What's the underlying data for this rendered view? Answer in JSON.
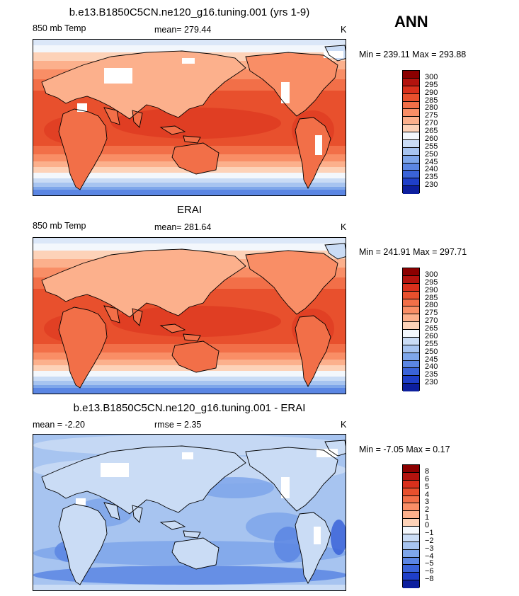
{
  "season": "ANN",
  "panels": [
    {
      "title": "b.e13.B1850C5CN.ne120_g16.tuning.001 (yrs 1-9)",
      "left_label": "850 mb Temp",
      "center_label": "mean= 279.44",
      "units": "K",
      "minmax": "Min = 239.11 Max = 293.88",
      "colorbar_labels": [
        "300",
        "295",
        "290",
        "285",
        "280",
        "275",
        "270",
        "265",
        "260",
        "255",
        "250",
        "245",
        "240",
        "235",
        "230"
      ],
      "colorbar_colors": [
        "#8b0000",
        "#b3130e",
        "#d9301c",
        "#e8502d",
        "#f26f48",
        "#f98e66",
        "#fcb08c",
        "#fdd2b8",
        "#f3f7fc",
        "#cadcf5",
        "#a7c4f0",
        "#7ea6ea",
        "#5b86e3",
        "#3a63d8",
        "#1f3fc8",
        "#0d1f9e"
      ],
      "map_style": "model"
    },
    {
      "title": "ERAI",
      "left_label": "850 mb Temp",
      "center_label": "mean= 281.64",
      "units": "K",
      "minmax": "Min = 241.91 Max = 297.71",
      "colorbar_labels": [
        "300",
        "295",
        "290",
        "285",
        "280",
        "275",
        "270",
        "265",
        "260",
        "255",
        "250",
        "245",
        "240",
        "235",
        "230"
      ],
      "colorbar_colors": [
        "#8b0000",
        "#b3130e",
        "#d9301c",
        "#e8502d",
        "#f26f48",
        "#f98e66",
        "#fcb08c",
        "#fdd2b8",
        "#f3f7fc",
        "#cadcf5",
        "#a7c4f0",
        "#7ea6ea",
        "#5b86e3",
        "#3a63d8",
        "#1f3fc8",
        "#0d1f9e"
      ],
      "map_style": "obs"
    },
    {
      "title": "b.e13.B1850C5CN.ne120_g16.tuning.001 - ERAI",
      "left_label": "mean =   -2.20",
      "center_label": "rmse =    2.35",
      "units": "K",
      "minmax": "Min =  -7.05 Max =   0.17",
      "colorbar_labels": [
        "8",
        "6",
        "5",
        "4",
        "3",
        "2",
        "1",
        "0",
        "−1",
        "−2",
        "−3",
        "−4",
        "−5",
        "−6",
        "−8"
      ],
      "colorbar_colors": [
        "#8b0000",
        "#b3130e",
        "#d9301c",
        "#e8502d",
        "#f26f48",
        "#f98e66",
        "#fcb08c",
        "#fdd2b8",
        "#f3f7fc",
        "#cadcf5",
        "#a7c4f0",
        "#7ea6ea",
        "#5b86e3",
        "#3a63d8",
        "#1f3fc8",
        "#0d1f9e"
      ],
      "map_style": "diff"
    }
  ]
}
